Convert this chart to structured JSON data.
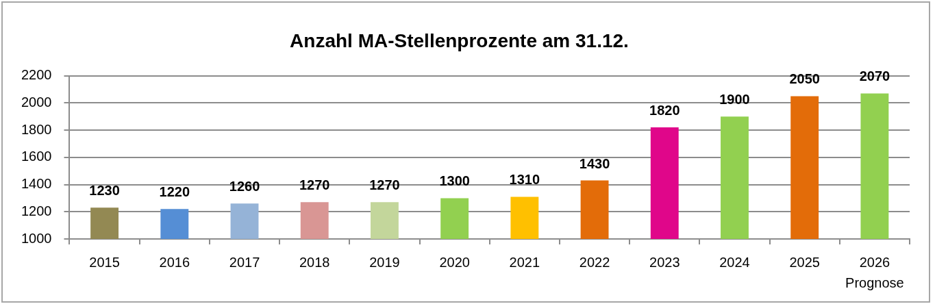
{
  "chart_data": {
    "type": "bar",
    "title": "Anzahl MA-Stellenprozente am 31.12.",
    "categories": [
      "2015",
      "2016",
      "2017",
      "2018",
      "2019",
      "2020",
      "2021",
      "2022",
      "2023",
      "2024",
      "2025",
      "2026\nPrognose"
    ],
    "values": [
      1230,
      1220,
      1260,
      1270,
      1270,
      1300,
      1310,
      1430,
      1820,
      1900,
      2050,
      2070
    ],
    "colors": [
      "#938953",
      "#558ed5",
      "#95b3d7",
      "#d99694",
      "#c3d69b",
      "#92d050",
      "#ffc000",
      "#e36c09",
      "#e0068a",
      "#92d050",
      "#e36c09",
      "#92d050"
    ],
    "ylim": [
      1000,
      2200
    ],
    "yticks": [
      1000,
      1200,
      1400,
      1600,
      1800,
      2000,
      2200
    ],
    "grid": "y",
    "data_labels": true
  }
}
